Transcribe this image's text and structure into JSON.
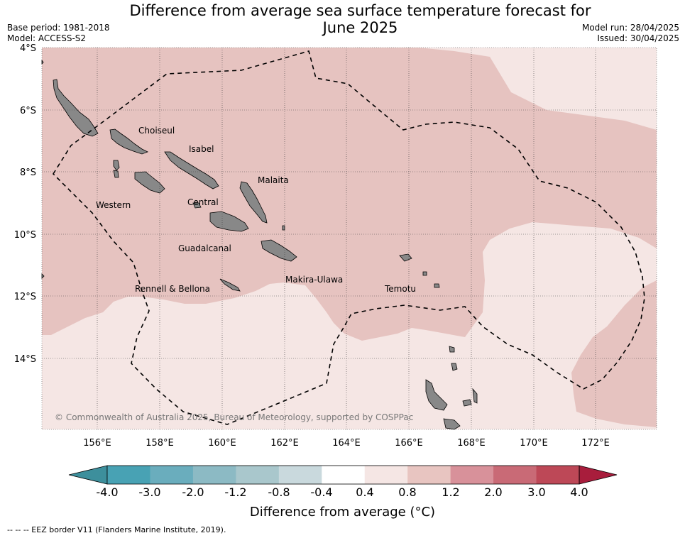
{
  "title_line1": "Difference from average sea surface temperature forecast for",
  "title_line2": "June 2025",
  "meta_left": [
    "Base period: 1981-2018",
    "Model: ACCESS-S2"
  ],
  "meta_right": [
    "Model run: 28/04/2025",
    "Issued: 30/04/2025"
  ],
  "lat_ticks": [
    "4°S",
    "6°S",
    "8°S",
    "10°S",
    "12°S",
    "14°S"
  ],
  "lon_ticks": [
    "156°E",
    "158°E",
    "160°E",
    "162°E",
    "164°E",
    "166°E",
    "168°E",
    "170°E",
    "172°E"
  ],
  "regions": [
    "Choiseul",
    "Isabel",
    "Malaita",
    "Western",
    "Central",
    "Guadalcanal",
    "Rennell & Bellona",
    "Makira-Ulawa",
    "Temotu"
  ],
  "copyright": "© Commonwealth of Australia 2025, Bureau of Meteorology, supported by COSPPac",
  "colorbar": {
    "ticks": [
      "-4.0",
      "-3.0",
      "-2.0",
      "-1.2",
      "-0.8",
      "-0.4",
      "0.4",
      "0.8",
      "1.2",
      "2.0",
      "3.0",
      "4.0"
    ],
    "colors": [
      "#3d8f9c",
      "#48a2b4",
      "#6aadbd",
      "#8cbac4",
      "#a9c7cc",
      "#c9d9dd",
      "#ffffff",
      "#f5e6e4",
      "#e8c5c1",
      "#d8919a",
      "#c96a76",
      "#bd4857",
      "#a81d3c"
    ],
    "label": "Difference from average (°C)"
  },
  "footer": "--  --  -- EEZ border V11 (Flanders Marine Institute, 2019).",
  "colors": {
    "ocean_light": "#f5e6e4",
    "ocean_mid": "#e8c5c1",
    "ocean_warm": "#e6c3c0",
    "land": "#888888"
  }
}
